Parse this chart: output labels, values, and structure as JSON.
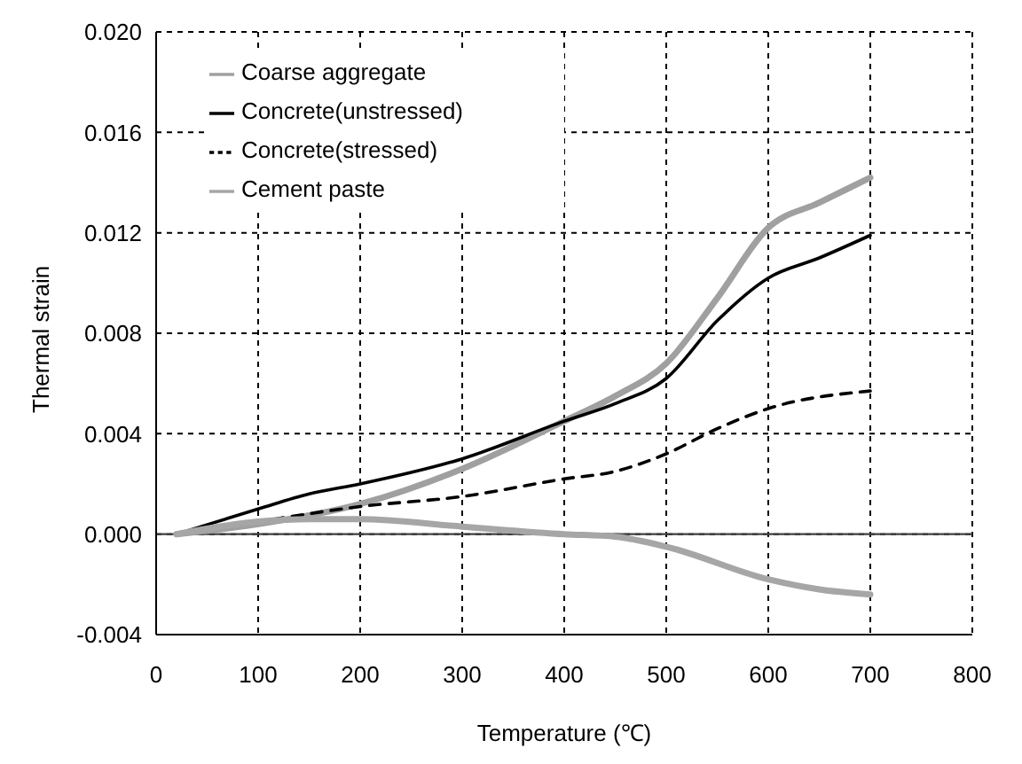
{
  "chart_data": {
    "type": "line",
    "xlabel": "Temperature (℃)",
    "ylabel": "Thermal strain",
    "xlim": [
      0,
      800
    ],
    "xticks": [
      0,
      100,
      200,
      300,
      400,
      500,
      600,
      700,
      800
    ],
    "ylim": [
      -0.004,
      0.02
    ],
    "yticks": [
      {
        "value": -0.004,
        "label": "-0.004"
      },
      {
        "value": 0,
        "label": "0.000"
      },
      {
        "value": 0.004,
        "label": "0.004"
      },
      {
        "value": 0.008,
        "label": "0.008"
      },
      {
        "value": 0.012,
        "label": "0.012"
      },
      {
        "value": 0.016,
        "label": "0.016"
      },
      {
        "value": 0.02,
        "label": "0.020"
      }
    ],
    "grid": true,
    "legend": "top left",
    "marker": "none",
    "ref_lines": [
      {
        "axis": "y",
        "value": 0,
        "color": "#404040",
        "line_style": "solid"
      }
    ],
    "series": [
      {
        "name": "Coarse aggregate",
        "color": "#a0a0a0",
        "line_style": "solid",
        "x": [
          20,
          100,
          200,
          300,
          400,
          450,
          500,
          550,
          600,
          650,
          700
        ],
        "values": [
          0,
          0.0004,
          0.0012,
          0.0026,
          0.0045,
          0.0055,
          0.0068,
          0.0094,
          0.0122,
          0.0132,
          0.0142
        ]
      },
      {
        "name": "Concrete(unstressed)",
        "color": "#000000",
        "line_style": "solid",
        "x": [
          20,
          100,
          150,
          200,
          300,
          400,
          450,
          500,
          550,
          600,
          650,
          700
        ],
        "values": [
          0,
          0.001,
          0.0016,
          0.002,
          0.003,
          0.0045,
          0.0052,
          0.0062,
          0.0085,
          0.0102,
          0.011,
          0.0119
        ]
      },
      {
        "name": "Concrete(stressed)",
        "color": "#000000",
        "line_style": "dashed",
        "x": [
          20,
          100,
          200,
          300,
          400,
          450,
          500,
          550,
          600,
          700
        ],
        "values": [
          0,
          0.0005,
          0.0011,
          0.0015,
          0.0022,
          0.0025,
          0.0032,
          0.0042,
          0.005,
          0.0057
        ]
      },
      {
        "name": "Cement paste",
        "color": "#a6a6a6",
        "line_style": "solid",
        "x": [
          20,
          100,
          150,
          200,
          300,
          400,
          450,
          500,
          600,
          650,
          700
        ],
        "values": [
          0,
          0.0005,
          0.0006,
          0.0006,
          0.0003,
          0,
          -0.0001,
          -0.0005,
          -0.0018,
          -0.0022,
          -0.0024
        ]
      }
    ]
  }
}
